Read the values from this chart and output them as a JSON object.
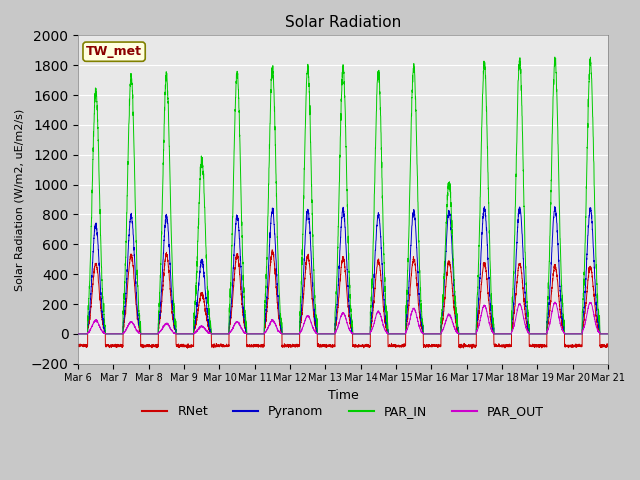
{
  "title": "Solar Radiation",
  "ylabel": "Solar Radiation (W/m2, uE/m2/s)",
  "xlabel": "Time",
  "ylim": [
    -200,
    2000
  ],
  "yticks": [
    -200,
    0,
    200,
    400,
    600,
    800,
    1000,
    1200,
    1400,
    1600,
    1800,
    2000
  ],
  "plot_bg_color": "#e8e8e8",
  "fig_bg_color": "#c8c8c8",
  "colors": {
    "RNet": "#cc0000",
    "Pyranom": "#0000cc",
    "PAR_IN": "#00cc00",
    "PAR_OUT": "#cc00cc"
  },
  "station_label": "TW_met",
  "start_day": 6,
  "n_days": 15,
  "par_in_peaks": [
    1630,
    1720,
    1720,
    1170,
    1750,
    1780,
    1780,
    1780,
    1760,
    1790,
    1010,
    1810,
    1830,
    1830,
    1820
  ],
  "pyranom_peaks": [
    730,
    790,
    790,
    490,
    790,
    830,
    830,
    830,
    800,
    820,
    820,
    840,
    840,
    840,
    835
  ],
  "rnet_peaks": [
    470,
    530,
    530,
    270,
    530,
    550,
    520,
    510,
    490,
    500,
    480,
    470,
    470,
    450,
    445
  ],
  "par_out_peaks": [
    90,
    80,
    70,
    50,
    80,
    90,
    120,
    140,
    150,
    170,
    130,
    190,
    200,
    210,
    210
  ],
  "rnet_night": -80,
  "figsize": [
    6.4,
    4.8
  ],
  "dpi": 100
}
